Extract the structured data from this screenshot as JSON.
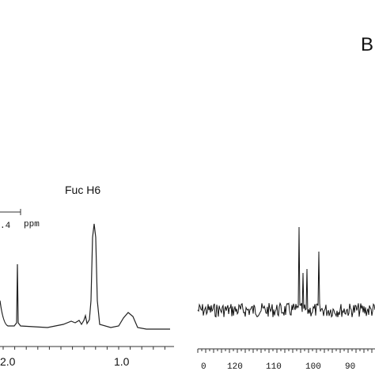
{
  "panel_label": "B",
  "left_spectrum": {
    "peak_label": "Fuc H6",
    "scale_value": ".4",
    "scale_unit": "ppm",
    "axis_labels": [
      "2.0",
      "1.0"
    ]
  },
  "right_spectrum": {
    "axis_labels": [
      "0",
      "120",
      "110",
      "100",
      "90"
    ]
  }
}
